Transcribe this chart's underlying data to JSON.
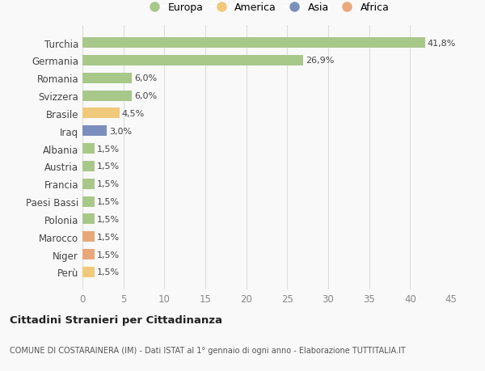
{
  "categories": [
    "Perù",
    "Niger",
    "Marocco",
    "Polonia",
    "Paesi Bassi",
    "Francia",
    "Austria",
    "Albania",
    "Iraq",
    "Brasile",
    "Svizzera",
    "Romania",
    "Germania",
    "Turchia"
  ],
  "values": [
    1.5,
    1.5,
    1.5,
    1.5,
    1.5,
    1.5,
    1.5,
    1.5,
    3.0,
    4.5,
    6.0,
    6.0,
    26.9,
    41.8
  ],
  "colors": [
    "#f0c97a",
    "#e8a87a",
    "#e8a87a",
    "#a8c88a",
    "#a8c88a",
    "#a8c88a",
    "#a8c88a",
    "#a8c88a",
    "#7b8fbe",
    "#f0c97a",
    "#a8c88a",
    "#a8c88a",
    "#a8c88a",
    "#a8c88a"
  ],
  "labels": [
    "1,5%",
    "1,5%",
    "1,5%",
    "1,5%",
    "1,5%",
    "1,5%",
    "1,5%",
    "1,5%",
    "3,0%",
    "4,5%",
    "6,0%",
    "6,0%",
    "26,9%",
    "41,8%"
  ],
  "legend_labels": [
    "Europa",
    "America",
    "Asia",
    "Africa"
  ],
  "legend_colors": [
    "#a8c88a",
    "#f0c97a",
    "#7b8fbe",
    "#e8a87a"
  ],
  "title": "Cittadini Stranieri per Cittadinanza",
  "subtitle": "COMUNE DI COSTARAINERA (IM) - Dati ISTAT al 1° gennaio di ogni anno - Elaborazione TUTTITALIA.IT",
  "xlim": [
    0,
    45
  ],
  "xticks": [
    0,
    5,
    10,
    15,
    20,
    25,
    30,
    35,
    40,
    45
  ],
  "bg_color": "#f9f9f9",
  "grid_color": "#dddddd"
}
